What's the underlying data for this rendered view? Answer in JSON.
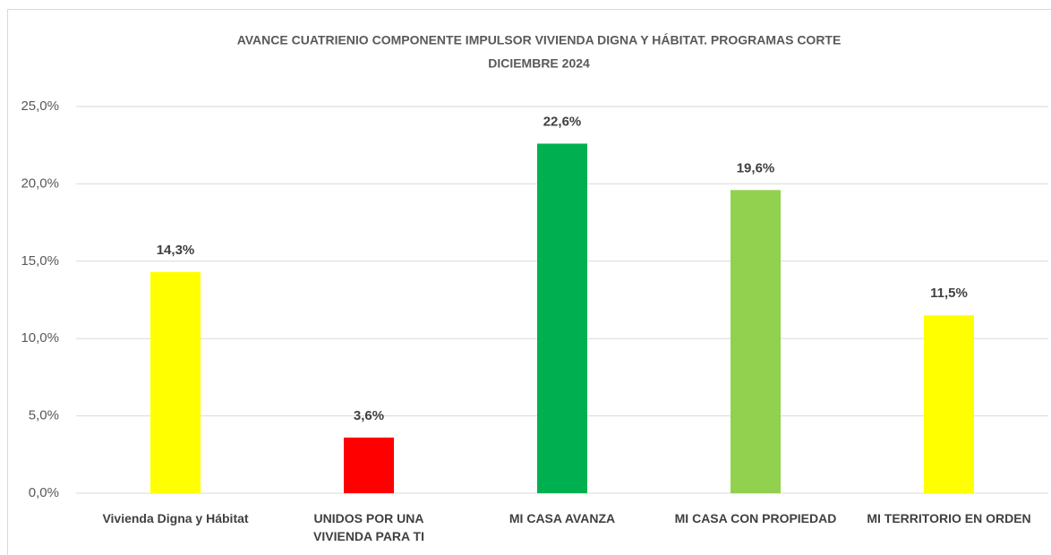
{
  "chart_data": {
    "type": "bar",
    "title": [
      "AVANCE CUATRIENIO COMPONENTE IMPULSOR VIVIENDA DIGNA Y HÁBITAT. PROGRAMAS  CORTE",
      "DICIEMBRE  2024"
    ],
    "categories": [
      "Vivienda Digna y Hábitat",
      "UNIDOS POR UNA VIVIENDA PARA TI",
      "MI CASA AVANZA",
      "MI CASA CON PROPIEDAD",
      "MI TERRITORIO EN ORDEN"
    ],
    "values": [
      14.3,
      3.6,
      22.6,
      19.6,
      11.5
    ],
    "value_labels": [
      "14,3%",
      "3,6%",
      "22,6%",
      "19,6%",
      "11,5%"
    ],
    "colors": [
      "#ffff00",
      "#ff0000",
      "#00b050",
      "#92d050",
      "#ffff00"
    ],
    "ylim": [
      0,
      25
    ],
    "yticks": [
      {
        "value": 0,
        "label": "0,0%"
      },
      {
        "value": 5,
        "label": "5,0%"
      },
      {
        "value": 10,
        "label": "10,0%"
      },
      {
        "value": 15,
        "label": "15,0%"
      },
      {
        "value": 20,
        "label": "20,0%"
      },
      {
        "value": 25,
        "label": "25,0%"
      }
    ],
    "grid": true
  }
}
